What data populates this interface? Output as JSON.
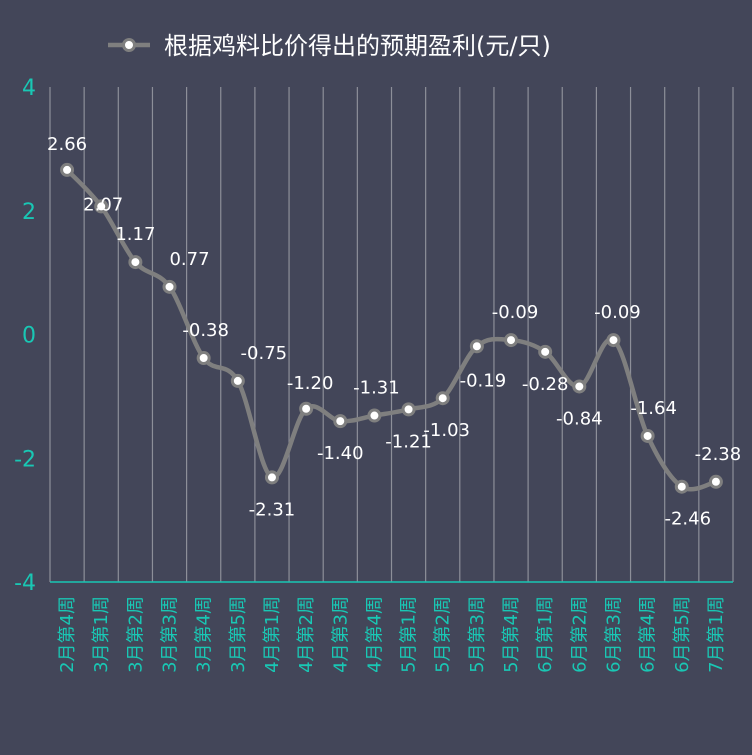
{
  "chart_data": {
    "type": "line",
    "title": "",
    "xlabel": "",
    "ylabel": "",
    "ylim": [
      -4,
      4
    ],
    "yticks": [
      "4",
      "2",
      "0",
      "-2",
      "-4"
    ],
    "grid": "vertical",
    "legend_position": "top",
    "categories": [
      "2月第4周",
      "3月第1周",
      "3月第2周",
      "3月第3周",
      "3月第4周",
      "3月第5周",
      "4月第1周",
      "4月第2周",
      "4月第3周",
      "4月第4周",
      "5月第1周",
      "5月第2周",
      "5月第3周",
      "5月第4周",
      "6月第1周",
      "6月第2周",
      "6月第3周",
      "6月第4周",
      "6月第5周",
      "7月第1周"
    ],
    "series": [
      {
        "name": "根据鸡料比价得出的预期盈利(元/只)",
        "color": "#7f7f7f",
        "values": [
          2.66,
          2.07,
          1.17,
          0.77,
          -0.38,
          -0.75,
          -2.31,
          -1.2,
          -1.4,
          -1.31,
          -1.21,
          -1.03,
          -0.19,
          -0.09,
          -0.28,
          -0.84,
          -0.09,
          -1.64,
          -2.46,
          -2.38
        ],
        "labels": [
          "2.66",
          "2.07",
          "1.17",
          "0.77",
          "-0.38",
          "-0.75",
          "-2.31",
          "-1.20",
          "-1.40",
          "-1.31",
          "-1.21",
          "-1.03",
          "-0.19",
          "-0.09",
          "-0.28",
          "-0.84",
          "-0.09",
          "-1.64",
          "-2.46",
          "-2.38"
        ]
      }
    ],
    "colors": {
      "background": "#434659",
      "axis_text": "#19c7b4",
      "gridline": "#8d8f99",
      "line": "#7f7f7f",
      "marker_fill": "#ffffff",
      "label_text": "#ffffff"
    }
  }
}
